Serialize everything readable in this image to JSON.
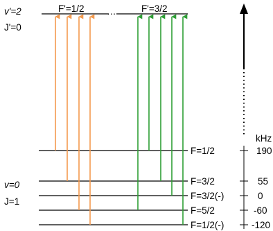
{
  "upper_state": {
    "vibrational": "v'=2",
    "rotational": "J'=0",
    "levels": [
      {
        "label": "F'=1/2"
      },
      {
        "label": "F'=3/2"
      }
    ],
    "separator": "…"
  },
  "lower_state": {
    "vibrational": "v=0",
    "rotational": "J=1",
    "levels": [
      {
        "label": "F=1/2",
        "energy_khz": "190"
      },
      {
        "label": "F=3/2",
        "energy_khz": "55"
      },
      {
        "label": "F=3/2(-)",
        "energy_khz": "0"
      },
      {
        "label": "F=5/2",
        "energy_khz": "-60"
      },
      {
        "label": "F=1/2(-)",
        "energy_khz": "-120"
      }
    ]
  },
  "energy_axis": {
    "unit": "kHz"
  },
  "transitions": {
    "to_F_prime_half": {
      "color": "#f39a4e",
      "count": 4
    },
    "to_F_prime_three_halves": {
      "color": "#2e9e35",
      "count": 5
    }
  }
}
